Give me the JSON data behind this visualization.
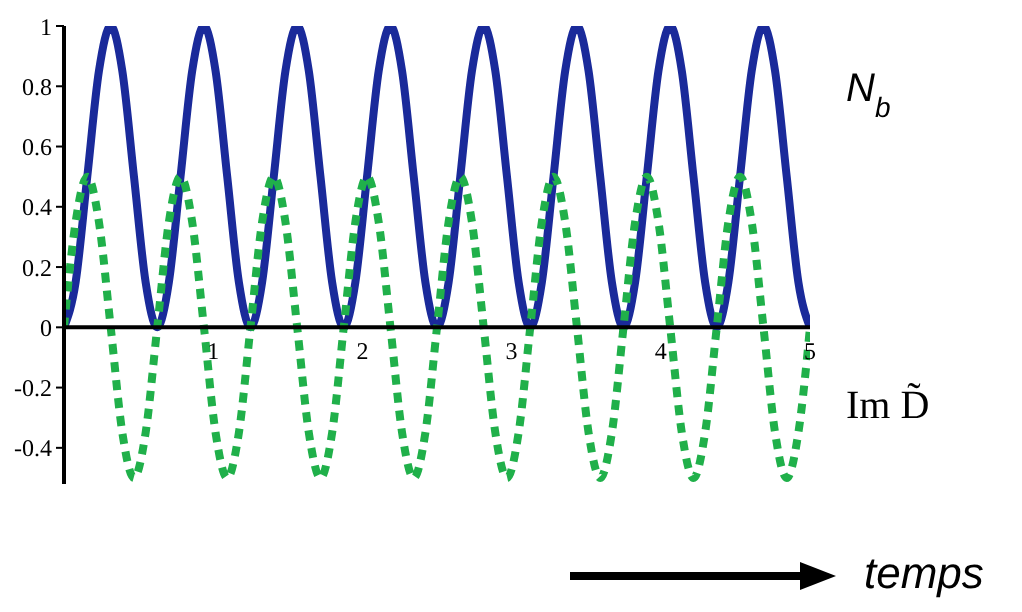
{
  "chart_data": {
    "type": "line",
    "xlabel": "temps",
    "x": [
      0,
      0.078,
      0.156,
      0.234,
      0.313,
      0.391,
      0.469,
      0.547,
      0.625,
      0.703,
      0.781,
      0.859,
      0.938,
      1.016,
      1.094,
      1.172,
      1.25,
      1.328,
      1.406,
      1.484,
      1.563,
      1.641,
      1.719,
      1.797,
      1.875,
      1.953,
      2.031,
      2.109,
      2.188,
      2.266,
      2.344,
      2.422,
      2.5,
      2.578,
      2.656,
      2.734,
      2.813,
      2.891,
      2.969,
      3.047,
      3.125,
      3.203,
      3.281,
      3.359,
      3.438,
      3.516,
      3.594,
      3.672,
      3.75,
      3.828,
      3.906,
      3.984,
      4.063,
      4.141,
      4.219,
      4.297,
      4.375,
      4.453,
      4.531,
      4.609,
      4.688,
      4.766,
      4.844,
      4.922,
      5
    ],
    "series": [
      {
        "name": "N$_{b}$",
        "color": "#1a2a9a",
        "line_style": "solid",
        "values": [
          0,
          0.15,
          0.5,
          0.85,
          1,
          0.85,
          0.5,
          0.15,
          0,
          0.15,
          0.5,
          0.85,
          1,
          0.85,
          0.5,
          0.15,
          0,
          0.15,
          0.5,
          0.85,
          1,
          0.85,
          0.5,
          0.15,
          0,
          0.15,
          0.5,
          0.85,
          1,
          0.85,
          0.5,
          0.15,
          0,
          0.15,
          0.5,
          0.85,
          1,
          0.85,
          0.5,
          0.15,
          0,
          0.15,
          0.5,
          0.85,
          1,
          0.85,
          0.5,
          0.15,
          0,
          0.15,
          0.5,
          0.85,
          1,
          0.85,
          0.5,
          0.15,
          0,
          0.15,
          0.5,
          0.85,
          1,
          0.85,
          0.5,
          0.15,
          0
        ]
      },
      {
        "name": "Im D̃",
        "color": "#20b04a",
        "line_style": "dotted",
        "values": [
          0,
          0.35,
          0.5,
          0.35,
          0,
          -0.35,
          -0.5,
          -0.35,
          0,
          0.35,
          0.5,
          0.35,
          0,
          -0.35,
          -0.5,
          -0.35,
          0,
          0.35,
          0.5,
          0.35,
          0,
          -0.35,
          -0.5,
          -0.35,
          0,
          0.35,
          0.5,
          0.35,
          0,
          -0.35,
          -0.5,
          -0.35,
          0,
          0.35,
          0.5,
          0.35,
          0,
          -0.35,
          -0.5,
          -0.35,
          0,
          0.35,
          0.5,
          0.35,
          0,
          -0.35,
          -0.5,
          -0.35,
          0,
          0.35,
          0.5,
          0.35,
          0,
          -0.35,
          -0.5,
          -0.35,
          0,
          0.35,
          0.5,
          0.35,
          0,
          -0.35,
          -0.5,
          -0.35,
          0
        ]
      }
    ],
    "xlim": [
      0,
      5
    ],
    "xticks": [
      1,
      2,
      3,
      4,
      5
    ],
    "ylim": [
      -0.52,
      1
    ],
    "yticks": [
      -0.4,
      -0.2,
      0,
      0.2,
      0.4,
      0.6,
      0.8,
      1
    ],
    "legend": "right",
    "marker": "none"
  }
}
